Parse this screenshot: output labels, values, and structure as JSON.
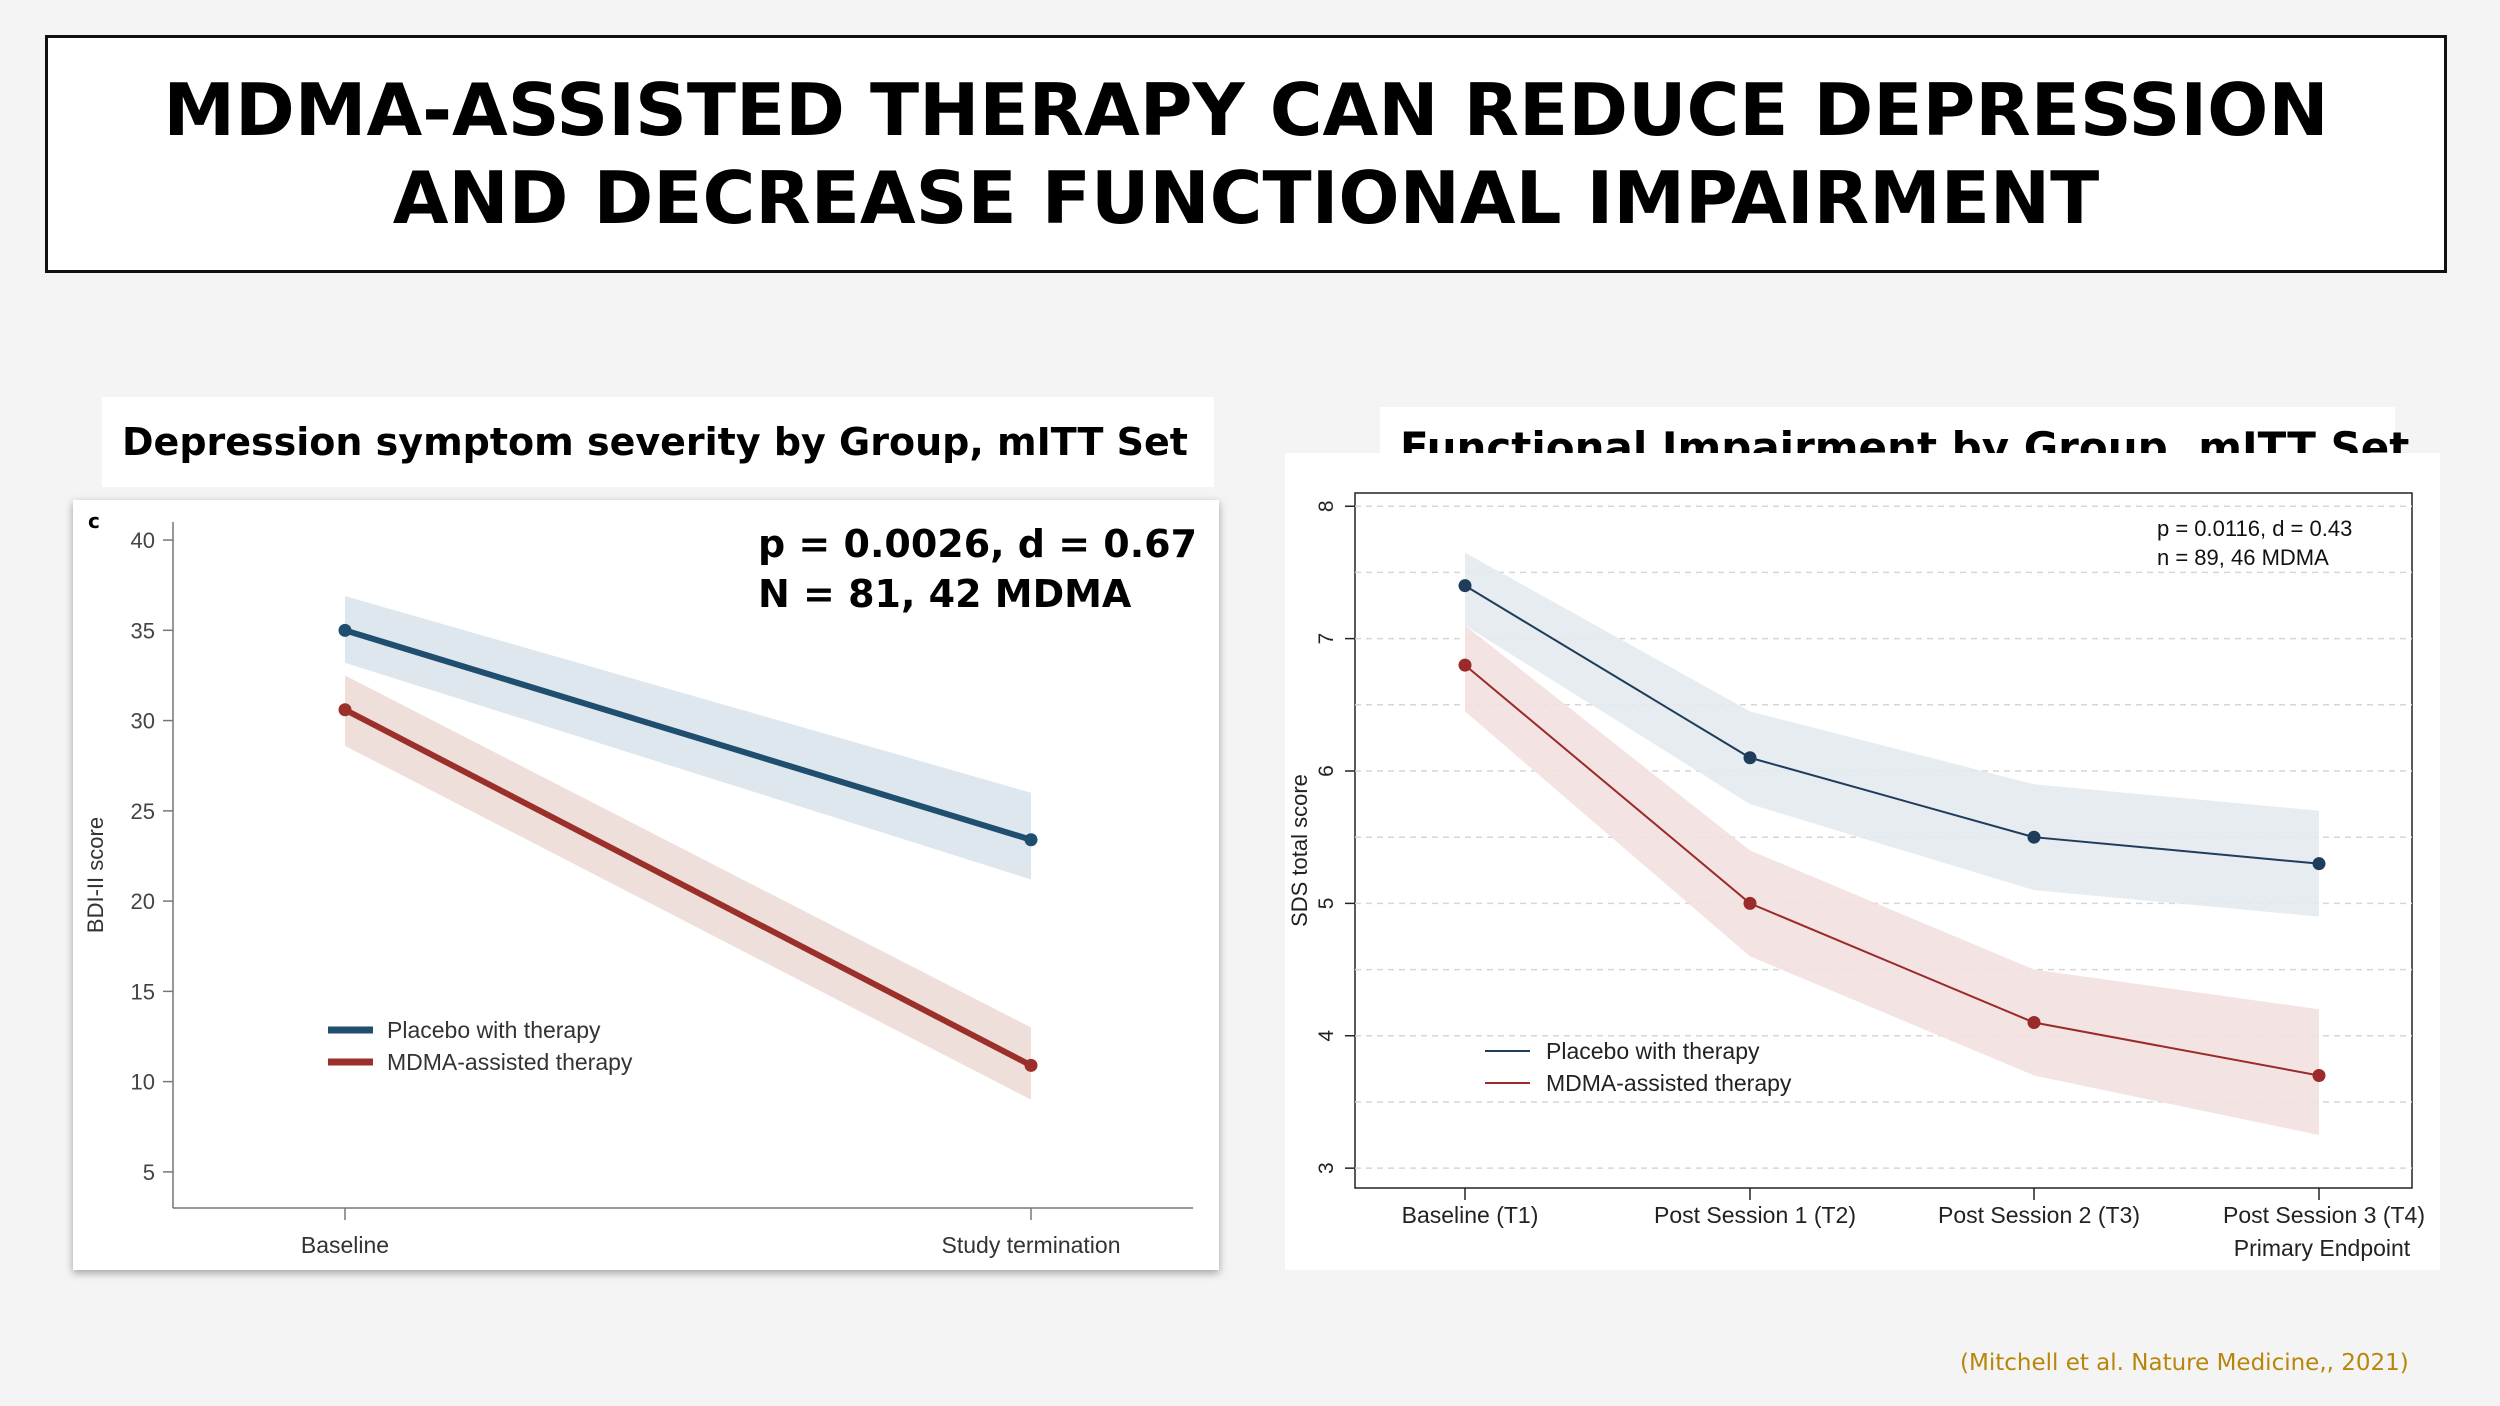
{
  "header": {
    "line1": "MDMA-ASSISTED THERAPY CAN REDUCE DEPRESSION",
    "line2": "AND DECREASE FUNCTIONAL IMPAIRMENT"
  },
  "citation": "(Mitchell et al. Nature Medicine,, 2021)",
  "chart_data": [
    {
      "type": "line",
      "panel_title": "Depression symptom severity by Group, mITT Set",
      "panel_letter": "c",
      "ylabel": "BDI-II score",
      "xlabel": "",
      "categories": [
        "Baseline",
        "Study termination"
      ],
      "ylim": [
        3,
        41
      ],
      "yticks": [
        5,
        10,
        15,
        20,
        25,
        30,
        35,
        40
      ],
      "grid": false,
      "stats": [
        "p = 0.0026, d = 0.67",
        "N = 81, 42 MDMA"
      ],
      "legend_position": "bottom-left",
      "series": [
        {
          "name": "Placebo with therapy",
          "color": "#1f4e6e",
          "band_color": "#dbe6ec",
          "values": [
            35,
            23.4
          ],
          "lower": [
            33.2,
            21.2
          ],
          "upper": [
            36.9,
            26.0
          ]
        },
        {
          "name": "MDMA-assisted therapy",
          "color": "#9b302a",
          "band_color": "#eeddd9",
          "values": [
            30.6,
            10.9
          ],
          "lower": [
            28.6,
            9.0
          ],
          "upper": [
            32.5,
            13.0
          ]
        }
      ]
    },
    {
      "type": "line",
      "panel_title": "Functional Impairment by Group, mITT Set",
      "ylabel": "SDS total score",
      "xlabel": "",
      "categories": [
        "Baseline (T1)",
        "Post Session 1 (T2)",
        "Post Session 2 (T3)",
        "Post Session 3 (T4)"
      ],
      "category_sublabel": {
        "index": 3,
        "text": "Primary Endpoint"
      },
      "ylim": [
        2.85,
        8.1
      ],
      "yticks": [
        3,
        4,
        5,
        6,
        7,
        8
      ],
      "grid": true,
      "stats": [
        "p = 0.0116, d = 0.43",
        "n = 89, 46 MDMA"
      ],
      "legend_position": "bottom-left",
      "series": [
        {
          "name": "Placebo with therapy",
          "color": "#1f3c5c",
          "band_color": "#e3eaee",
          "values": [
            7.4,
            6.1,
            5.5,
            5.3
          ],
          "lower": [
            7.1,
            5.75,
            5.1,
            4.9
          ],
          "upper": [
            7.65,
            6.45,
            5.9,
            5.7
          ]
        },
        {
          "name": "MDMA-assisted therapy",
          "color": "#9b2a2a",
          "band_color": "#f2e0e0",
          "values": [
            6.8,
            5.0,
            4.1,
            3.7
          ],
          "lower": [
            6.45,
            4.6,
            3.7,
            3.25
          ],
          "upper": [
            7.1,
            5.4,
            4.5,
            4.2
          ]
        }
      ]
    }
  ]
}
